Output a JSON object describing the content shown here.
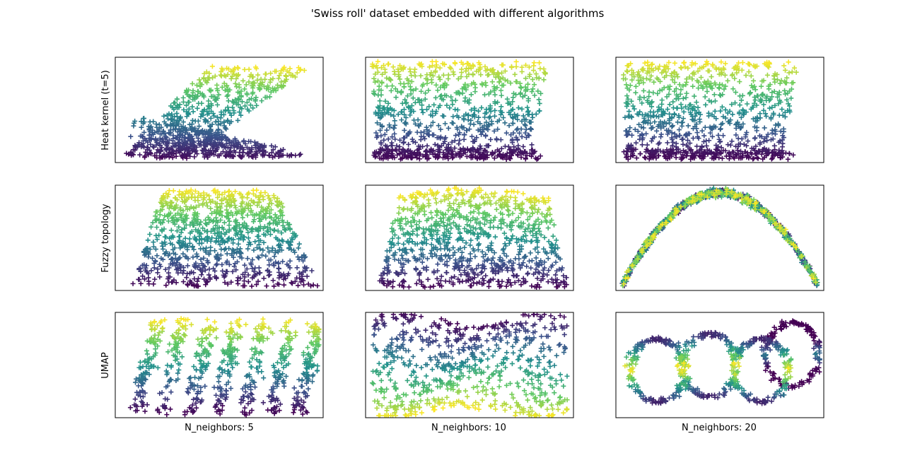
{
  "figure": {
    "title": "'Swiss roll' dataset embedded with different algorithms"
  },
  "colormap": [
    "#440154",
    "#3b528b",
    "#21918c",
    "#5ec962",
    "#fde725"
  ],
  "chart_data": {
    "type": "scatter",
    "marker": "+",
    "rows": [
      "Heat kernel (t=5)",
      "Fuzzy topology",
      "UMAP"
    ],
    "columns": [
      "N_neighbors: 5",
      "N_neighbors: 10",
      "N_neighbors: 20"
    ],
    "axes_visible_ticks": false,
    "panels": [
      {
        "row": 0,
        "col": 0,
        "shape": "heat-kernel-spread",
        "points": 900
      },
      {
        "row": 0,
        "col": 1,
        "shape": "heat-kernel-box",
        "points": 900
      },
      {
        "row": 0,
        "col": 2,
        "shape": "heat-kernel-box",
        "points": 900
      },
      {
        "row": 1,
        "col": 0,
        "shape": "fuzzy-dome",
        "points": 900
      },
      {
        "row": 1,
        "col": 1,
        "shape": "fuzzy-dome-wide",
        "points": 900
      },
      {
        "row": 1,
        "col": 2,
        "shape": "fuzzy-arch",
        "points": 900
      },
      {
        "row": 2,
        "col": 0,
        "shape": "umap-fragments",
        "points": 700
      },
      {
        "row": 2,
        "col": 1,
        "shape": "umap-bands",
        "points": 700
      },
      {
        "row": 2,
        "col": 2,
        "shape": "umap-loops",
        "points": 700
      }
    ]
  }
}
